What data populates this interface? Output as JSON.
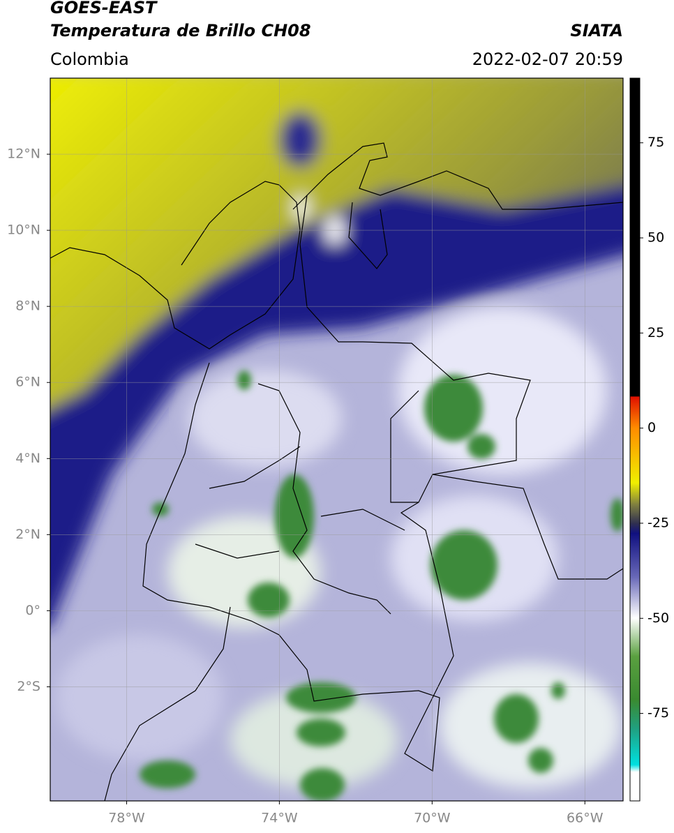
{
  "header": {
    "source": "GOES-EAST",
    "product": "Temperatura de Brillo CH08",
    "region": "Colombia",
    "agency": "SIATA",
    "timestamp": "2022-02-07 20:59"
  },
  "map": {
    "xlim": [
      -80,
      -65
    ],
    "ylim": [
      -5,
      14
    ],
    "xticks": [
      {
        "value": -78,
        "label": "78°W"
      },
      {
        "value": -74,
        "label": "74°W"
      },
      {
        "value": -70,
        "label": "70°W"
      },
      {
        "value": -66,
        "label": "66°W"
      }
    ],
    "yticks": [
      {
        "value": 12,
        "label": "12°N"
      },
      {
        "value": 10,
        "label": "10°N"
      },
      {
        "value": 8,
        "label": "8°N"
      },
      {
        "value": 6,
        "label": "6°N"
      },
      {
        "value": 4,
        "label": "4°N"
      },
      {
        "value": 2,
        "label": "2°N"
      },
      {
        "value": 0,
        "label": "0°"
      },
      {
        "value": -2,
        "label": "2°S"
      }
    ],
    "grid": true
  },
  "colorbar": {
    "lim": [
      -98,
      92
    ],
    "ticks": [
      75,
      50,
      25,
      0,
      -25,
      -50,
      -75
    ]
  }
}
